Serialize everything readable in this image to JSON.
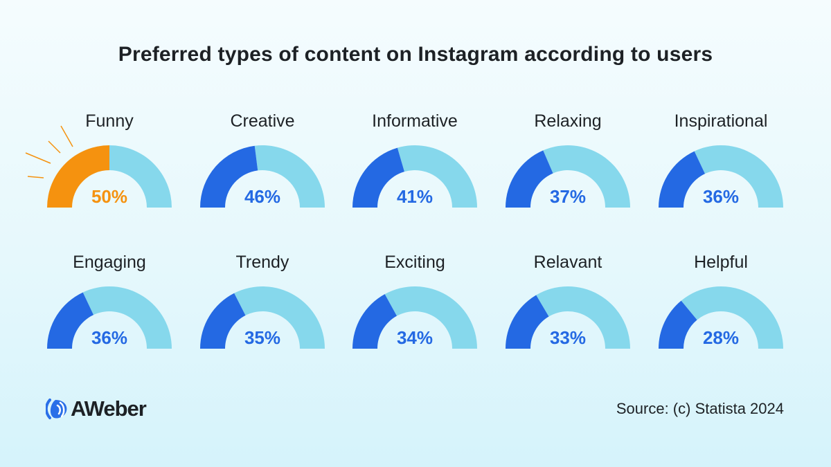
{
  "chart_data": {
    "type": "gauge",
    "title": "Preferred types of content on Instagram according to users",
    "unit": "%",
    "range": [
      0,
      100
    ],
    "categories": [
      "Funny",
      "Creative",
      "Informative",
      "Relaxing",
      "Inspirational",
      "Engaging",
      "Trendy",
      "Exciting",
      "Relavant",
      "Helpful"
    ],
    "values": [
      50,
      46,
      41,
      37,
      36,
      36,
      35,
      34,
      33,
      28
    ],
    "labels": [
      "50%",
      "46%",
      "41%",
      "37%",
      "36%",
      "36%",
      "35%",
      "34%",
      "33%",
      "28%"
    ],
    "highlight_index": 0,
    "colors": {
      "highlight": "#f5920f",
      "fill": "#2469e3",
      "track": "#86d8ec"
    }
  },
  "footer": {
    "logo": "AWeber",
    "source": "Source: (c) Statista 2024"
  }
}
